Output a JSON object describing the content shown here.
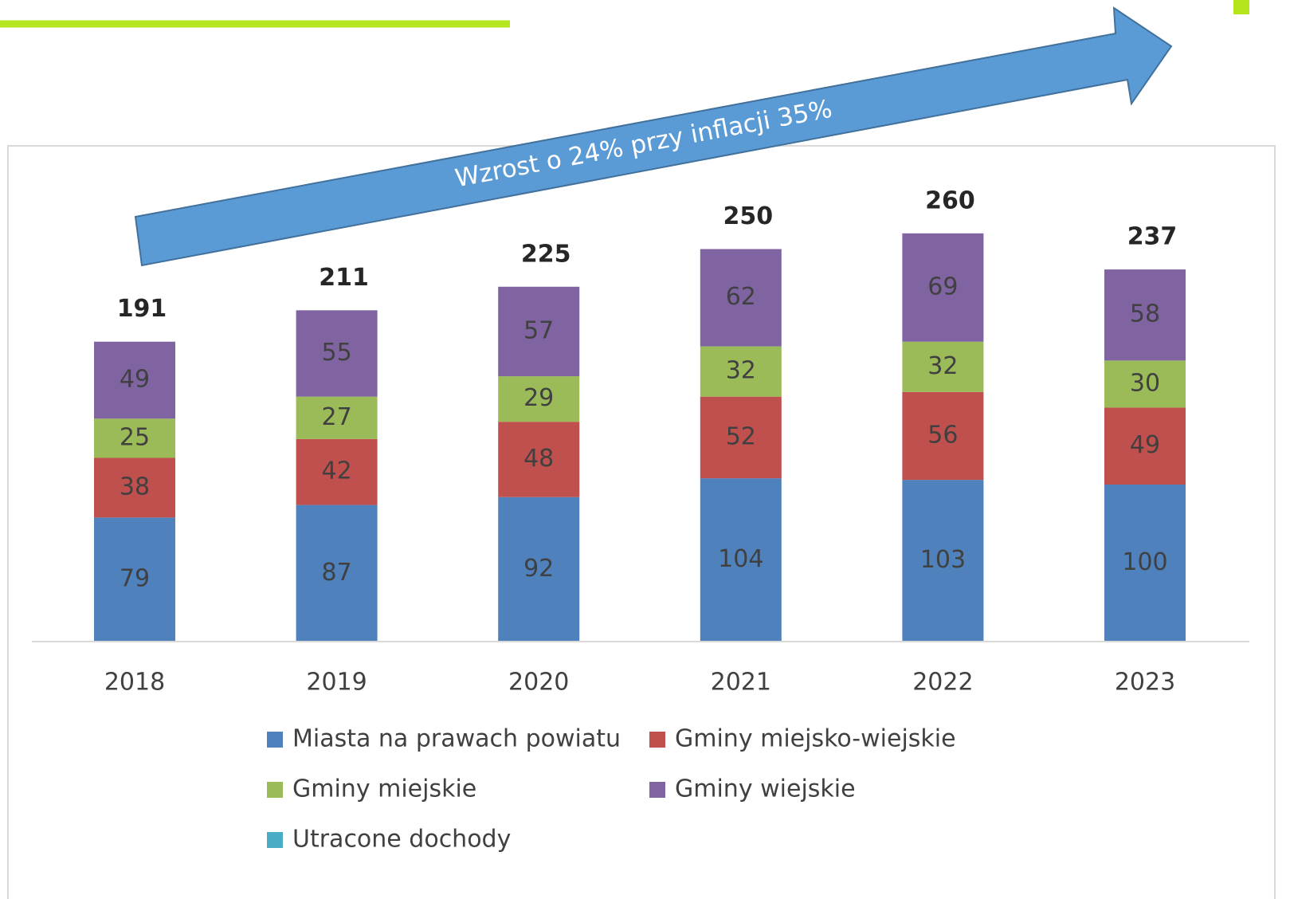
{
  "chart_data": {
    "type": "stacked_bar",
    "annotation": "Wzrost o 24% przy inflacji 35%",
    "categories": [
      "2018",
      "2019",
      "2020",
      "2021",
      "2022",
      "2023"
    ],
    "totals": [
      191,
      211,
      225,
      250,
      260,
      237
    ],
    "series": [
      {
        "name": "Miasta na prawach powiatu",
        "color": "#4f81bd",
        "values": [
          79,
          87,
          92,
          104,
          103,
          100
        ]
      },
      {
        "name": "Gminy miejsko-wiejskie",
        "color": "#c0504d",
        "values": [
          38,
          42,
          48,
          52,
          56,
          49
        ]
      },
      {
        "name": "Gminy miejskie",
        "color": "#9bbb59",
        "values": [
          25,
          27,
          29,
          32,
          32,
          30
        ]
      },
      {
        "name": "Gminy wiejskie",
        "color": "#8064a2",
        "values": [
          49,
          55,
          57,
          62,
          69,
          58
        ]
      },
      {
        "name": "Utracone dochody",
        "color": "#4bacc6",
        "values": [
          null,
          null,
          null,
          null,
          null,
          null
        ]
      }
    ]
  }
}
